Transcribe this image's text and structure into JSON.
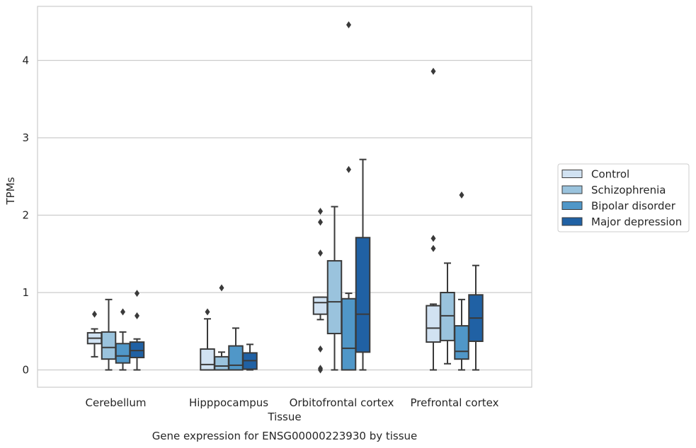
{
  "chart_data": {
    "type": "box",
    "caption": "Gene expression for ENSG00000223930 by tissue",
    "xlabel": "Tissue",
    "ylabel": "TPMs",
    "ylim": [
      -0.22,
      4.7
    ],
    "yticks": [
      0,
      1,
      2,
      3,
      4
    ],
    "grid": true,
    "legend_position": "right",
    "categories": [
      "Cerebellum",
      "Hipppocampus",
      "Orbitofrontal cortex",
      "Prefrontal cortex"
    ],
    "series": [
      {
        "name": "Control",
        "color": "#d1e2f2",
        "boxes": [
          {
            "wlo": 0.17,
            "q1": 0.34,
            "med": 0.41,
            "q3": 0.48,
            "whi": 0.53,
            "outliers": [
              0.72
            ]
          },
          {
            "wlo": 0.0,
            "q1": 0.0,
            "med": 0.07,
            "q3": 0.27,
            "whi": 0.66,
            "outliers": [
              0.75
            ]
          },
          {
            "wlo": 0.65,
            "q1": 0.72,
            "med": 0.87,
            "q3": 0.94,
            "whi": 0.94,
            "outliers": [
              2.05,
              1.91,
              1.51,
              0.27,
              0.02,
              0.0
            ]
          },
          {
            "wlo": 0.0,
            "q1": 0.36,
            "med": 0.54,
            "q3": 0.83,
            "whi": 0.85,
            "outliers": [
              3.86,
              1.7,
              1.57
            ]
          }
        ]
      },
      {
        "name": "Schizophrenia",
        "color": "#9ac3dd",
        "boxes": [
          {
            "wlo": 0.0,
            "q1": 0.14,
            "med": 0.29,
            "q3": 0.49,
            "whi": 0.91,
            "outliers": []
          },
          {
            "wlo": 0.0,
            "q1": 0.0,
            "med": 0.05,
            "q3": 0.17,
            "whi": 0.23,
            "outliers": [
              1.06
            ]
          },
          {
            "wlo": 0.0,
            "q1": 0.47,
            "med": 0.88,
            "q3": 1.41,
            "whi": 2.11,
            "outliers": []
          },
          {
            "wlo": 0.08,
            "q1": 0.38,
            "med": 0.7,
            "q3": 1.0,
            "whi": 1.38,
            "outliers": []
          }
        ]
      },
      {
        "name": "Bipolar disorder",
        "color": "#5097c8",
        "boxes": [
          {
            "wlo": 0.0,
            "q1": 0.09,
            "med": 0.18,
            "q3": 0.34,
            "whi": 0.49,
            "outliers": [
              0.75
            ]
          },
          {
            "wlo": 0.0,
            "q1": 0.0,
            "med": 0.06,
            "q3": 0.31,
            "whi": 0.54,
            "outliers": []
          },
          {
            "wlo": 0.0,
            "q1": 0.0,
            "med": 0.28,
            "q3": 0.92,
            "whi": 0.99,
            "outliers": [
              4.46,
              2.59
            ]
          },
          {
            "wlo": 0.0,
            "q1": 0.14,
            "med": 0.24,
            "q3": 0.57,
            "whi": 0.91,
            "outliers": [
              2.26
            ]
          }
        ]
      },
      {
        "name": "Major depression",
        "color": "#2061a4",
        "boxes": [
          {
            "wlo": 0.0,
            "q1": 0.16,
            "med": 0.25,
            "q3": 0.36,
            "whi": 0.4,
            "outliers": [
              0.99,
              0.7
            ]
          },
          {
            "wlo": 0.0,
            "q1": 0.01,
            "med": 0.12,
            "q3": 0.22,
            "whi": 0.33,
            "outliers": []
          },
          {
            "wlo": 0.0,
            "q1": 0.23,
            "med": 0.72,
            "q3": 1.71,
            "whi": 2.72,
            "outliers": []
          },
          {
            "wlo": 0.0,
            "q1": 0.37,
            "med": 0.67,
            "q3": 0.97,
            "whi": 1.35,
            "outliers": []
          }
        ]
      }
    ]
  }
}
